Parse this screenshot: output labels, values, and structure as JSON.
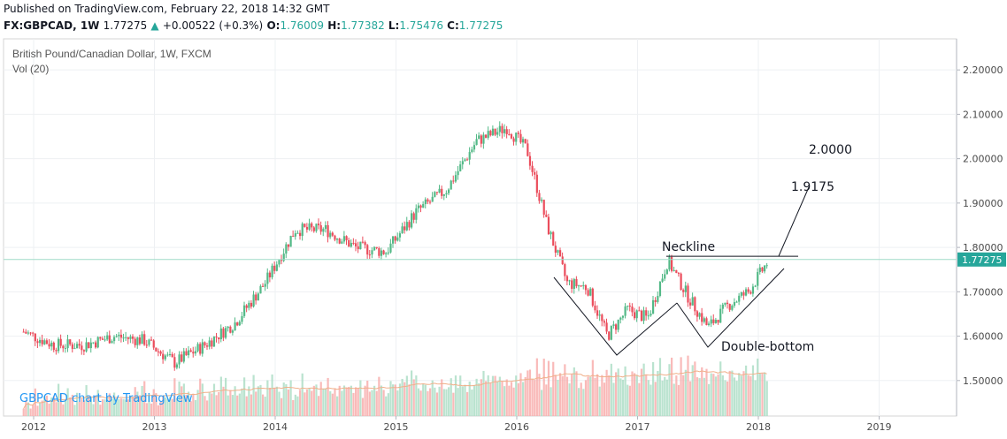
{
  "header": {
    "published": "Published on TradingView.com, February 22, 2018 14:32 GMT",
    "symbol": "FX:GBPCAD, 1W",
    "last": "1.77275",
    "change_arrow": "▲",
    "change": "+0.00522 (+0.3%)",
    "o_label": "O:",
    "o": "1.76009",
    "h_label": "H:",
    "h": "1.77382",
    "l_label": "L:",
    "l": "1.75476",
    "c_label": "C:",
    "c": "1.77275"
  },
  "chart_data": {
    "type": "candlestick",
    "title": "British Pound/Canadian Dollar, 1W, FXCM",
    "volume_label": "Vol (20)",
    "watermark": "GBPCAD chart by TradingView",
    "ylim": [
      1.42,
      2.27
    ],
    "y_ticks": [
      "2.20000",
      "2.10000",
      "2.00000",
      "1.90000",
      "1.80000",
      "1.70000",
      "1.60000",
      "1.50000"
    ],
    "x_ticks": [
      "2012",
      "2013",
      "2014",
      "2015",
      "2016",
      "2017",
      "2018",
      "2019"
    ],
    "last_price": "1.77275",
    "price_path": [
      [
        "2011-12",
        1.61
      ],
      [
        "2012-03",
        1.58
      ],
      [
        "2012-06",
        1.58
      ],
      [
        "2012-09",
        1.6
      ],
      [
        "2012-12",
        1.59
      ],
      [
        "2013-03",
        1.54
      ],
      [
        "2013-06",
        1.58
      ],
      [
        "2013-09",
        1.63
      ],
      [
        "2013-12",
        1.72
      ],
      [
        "2014-03",
        1.84
      ],
      [
        "2014-06",
        1.84
      ],
      [
        "2014-09",
        1.8
      ],
      [
        "2014-12",
        1.79
      ],
      [
        "2015-03",
        1.88
      ],
      [
        "2015-06",
        1.93
      ],
      [
        "2015-09",
        2.04
      ],
      [
        "2015-12",
        2.07
      ],
      [
        "2016-02",
        2.02
      ],
      [
        "2016-04",
        1.85
      ],
      [
        "2016-06",
        1.72
      ],
      [
        "2016-08",
        1.71
      ],
      [
        "2016-10",
        1.6
      ],
      [
        "2016-12",
        1.66
      ],
      [
        "2017-02",
        1.64
      ],
      [
        "2017-04",
        1.77
      ],
      [
        "2017-06",
        1.69
      ],
      [
        "2017-08",
        1.62
      ],
      [
        "2017-10",
        1.67
      ],
      [
        "2017-12",
        1.7
      ],
      [
        "2018-02",
        1.77
      ]
    ],
    "annotations": {
      "neckline_label": "Neckline",
      "neckline_price": 1.78,
      "double_bottom_label": "Double-bottom",
      "target1_label": "1.9175",
      "target2_label": "2.0000"
    }
  }
}
